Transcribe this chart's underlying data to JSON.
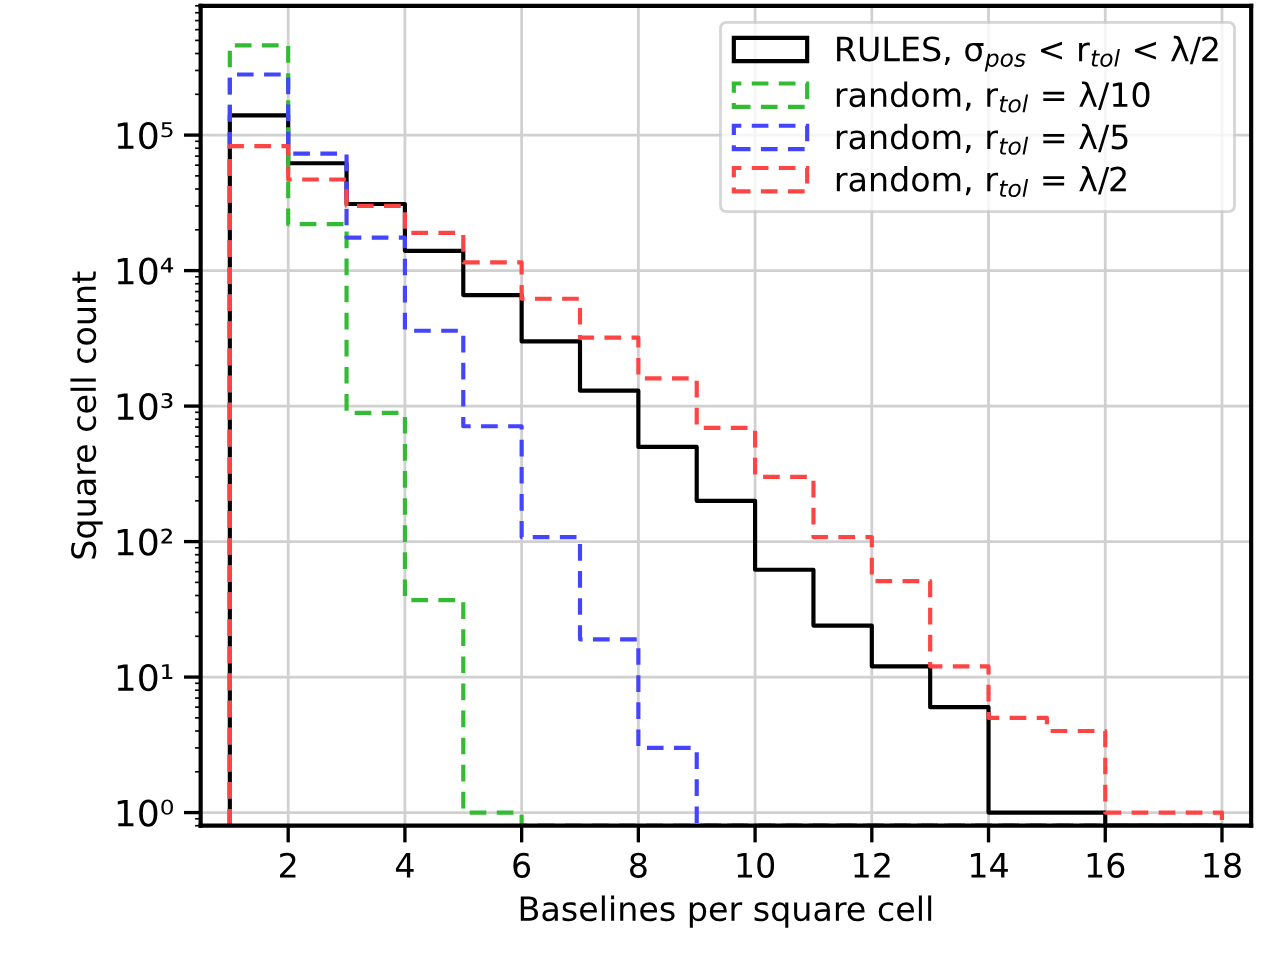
{
  "chart_data": {
    "type": "histogram",
    "xlabel": "Baselines per square cell",
    "ylabel": "Square cell count",
    "log": "y",
    "xlim": [
      0.5,
      18.5
    ],
    "xticks": [
      2,
      4,
      6,
      8,
      10,
      12,
      14,
      16,
      18
    ],
    "ylim": [
      0.8,
      900000
    ],
    "yticks": [
      {
        "value": 1,
        "label": "10⁰"
      },
      {
        "value": 10,
        "label": "10¹"
      },
      {
        "value": 100,
        "label": "10²"
      },
      {
        "value": 1000,
        "label": "10³"
      },
      {
        "value": 10000,
        "label": "10⁴"
      },
      {
        "value": 100000,
        "label": "10⁵"
      }
    ],
    "grid": true,
    "legend": "top right",
    "bins": [
      1,
      2,
      3,
      4,
      5,
      6,
      7,
      8,
      9,
      10,
      11,
      12,
      13,
      14,
      15,
      16,
      17,
      18
    ],
    "series": [
      {
        "name": "RULES, σ$_{pos}$ < r$_{tol}$ < λ/2",
        "color": "#000000",
        "line_style": "solid",
        "values": [
          140000,
          62000,
          31000,
          14000,
          6600,
          3000,
          1300,
          500,
          200,
          62,
          24,
          12,
          6,
          1,
          1,
          null,
          null
        ]
      },
      {
        "name": "random, r$_{tol}$ = λ/10",
        "color": "#33bb33",
        "line_style": "dashed",
        "values": [
          460000,
          22000,
          890,
          37,
          1,
          null,
          null,
          null,
          null,
          null,
          null,
          null,
          null,
          null,
          null,
          null,
          null
        ]
      },
      {
        "name": "random, r$_{tol}$ = λ/5",
        "color": "#4444ff",
        "line_style": "dashed",
        "values": [
          280000,
          73000,
          17500,
          3600,
          710,
          108,
          19,
          3,
          null,
          null,
          null,
          null,
          null,
          null,
          null,
          null,
          null
        ]
      },
      {
        "name": "random, r$_{tol}$ = λ/2",
        "color": "#ff4444",
        "line_style": "dashed",
        "values": [
          83000,
          47000,
          30000,
          19000,
          11500,
          6200,
          3200,
          1600,
          690,
          300,
          108,
          51,
          12,
          5,
          4,
          1,
          1
        ]
      }
    ]
  }
}
